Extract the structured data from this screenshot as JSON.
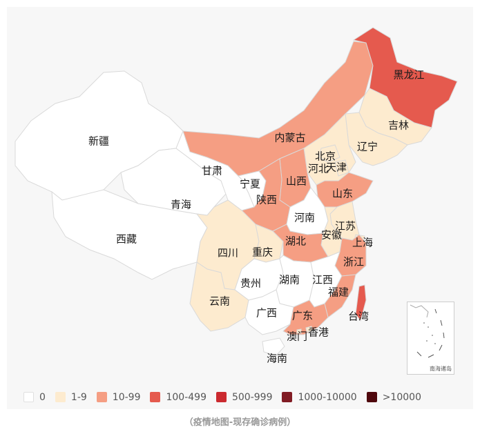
{
  "caption": "（疫情地图-现存确诊病例）",
  "inset_label": "南海诸岛",
  "legend": [
    {
      "label": "0",
      "color": "#ffffff"
    },
    {
      "label": "1-9",
      "color": "#fdebcf"
    },
    {
      "label": "10-99",
      "color": "#f59e83"
    },
    {
      "label": "100-499",
      "color": "#e55a4e"
    },
    {
      "label": "500-999",
      "color": "#cb2a2f"
    },
    {
      "label": "1000-10000",
      "color": "#811c24"
    },
    {
      "label": ">10000",
      "color": "#4f070d"
    }
  ],
  "provinces": [
    {
      "id": "xinjiang",
      "name": "新疆",
      "color": "#ffffff"
    },
    {
      "id": "xizang",
      "name": "西藏",
      "color": "#ffffff"
    },
    {
      "id": "qinghai",
      "name": "青海",
      "color": "#ffffff"
    },
    {
      "id": "gansu",
      "name": "甘肃",
      "color": "#ffffff"
    },
    {
      "id": "neimenggu",
      "name": "内蒙古",
      "color": "#f59e83"
    },
    {
      "id": "heilongjiang",
      "name": "黑龙江",
      "color": "#e55a4e"
    },
    {
      "id": "jilin",
      "name": "吉林",
      "color": "#fdebcf"
    },
    {
      "id": "liaoning",
      "name": "辽宁",
      "color": "#fdebcf"
    },
    {
      "id": "beijing",
      "name": "北京",
      "color": "#fdebcf"
    },
    {
      "id": "tianjin",
      "name": "天津",
      "color": "#fdebcf"
    },
    {
      "id": "hebei",
      "name": "河北",
      "color": "#fdebcf"
    },
    {
      "id": "shanxi",
      "name": "山西",
      "color": "#f59e83"
    },
    {
      "id": "ningxia",
      "name": "宁夏",
      "color": "#ffffff"
    },
    {
      "id": "shaanxi",
      "name": "陕西",
      "color": "#f59e83"
    },
    {
      "id": "shandong",
      "name": "山东",
      "color": "#f59e83"
    },
    {
      "id": "henan",
      "name": "河南",
      "color": "#ffffff"
    },
    {
      "id": "jiangsu",
      "name": "江苏",
      "color": "#fdebcf"
    },
    {
      "id": "anhui",
      "name": "安徽",
      "color": "#fdebcf"
    },
    {
      "id": "shanghai",
      "name": "上海",
      "color": "#fdebcf"
    },
    {
      "id": "sichuan",
      "name": "四川",
      "color": "#fdebcf"
    },
    {
      "id": "chongqing",
      "name": "重庆",
      "color": "#fdebcf"
    },
    {
      "id": "hubei",
      "name": "湖北",
      "color": "#f59e83"
    },
    {
      "id": "zhejiang",
      "name": "浙江",
      "color": "#f59e83"
    },
    {
      "id": "guizhou",
      "name": "贵州",
      "color": "#ffffff"
    },
    {
      "id": "hunan",
      "name": "湖南",
      "color": "#ffffff"
    },
    {
      "id": "jiangxi",
      "name": "江西",
      "color": "#ffffff"
    },
    {
      "id": "fujian",
      "name": "福建",
      "color": "#f59e83"
    },
    {
      "id": "yunnan",
      "name": "云南",
      "color": "#fdebcf"
    },
    {
      "id": "guangxi",
      "name": "广西",
      "color": "#ffffff"
    },
    {
      "id": "guangdong",
      "name": "广东",
      "color": "#f59e83"
    },
    {
      "id": "taiwan",
      "name": "台湾",
      "color": "#e55a4e"
    },
    {
      "id": "xianggang",
      "name": "香港",
      "color": "#fdebcf"
    },
    {
      "id": "aomen",
      "name": "澳门",
      "color": "#fdebcf"
    },
    {
      "id": "hainan",
      "name": "海南",
      "color": "#ffffff"
    }
  ]
}
